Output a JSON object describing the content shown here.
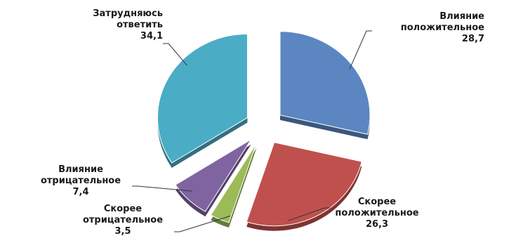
{
  "chart_data": {
    "type": "pie",
    "title": "",
    "slices": [
      {
        "label": [
          "Влияние",
          "положительное"
        ],
        "value": 28.7,
        "display": "28,7",
        "color": "#5b86c2"
      },
      {
        "label": [
          "Скорее",
          "положительное"
        ],
        "value": 26.3,
        "display": "26,3",
        "color": "#c0504d"
      },
      {
        "label": [
          "Скорее",
          "отрицательное"
        ],
        "value": 3.5,
        "display": "3,5",
        "color": "#9bbb59"
      },
      {
        "label": [
          "Влияние",
          "отрицательное"
        ],
        "value": 7.4,
        "display": "7,4",
        "color": "#8064a2"
      },
      {
        "label": [
          "Затрудняюсь",
          "ответить"
        ],
        "value": 34.1,
        "display": "34,1",
        "color": "#4bacc6"
      }
    ]
  }
}
